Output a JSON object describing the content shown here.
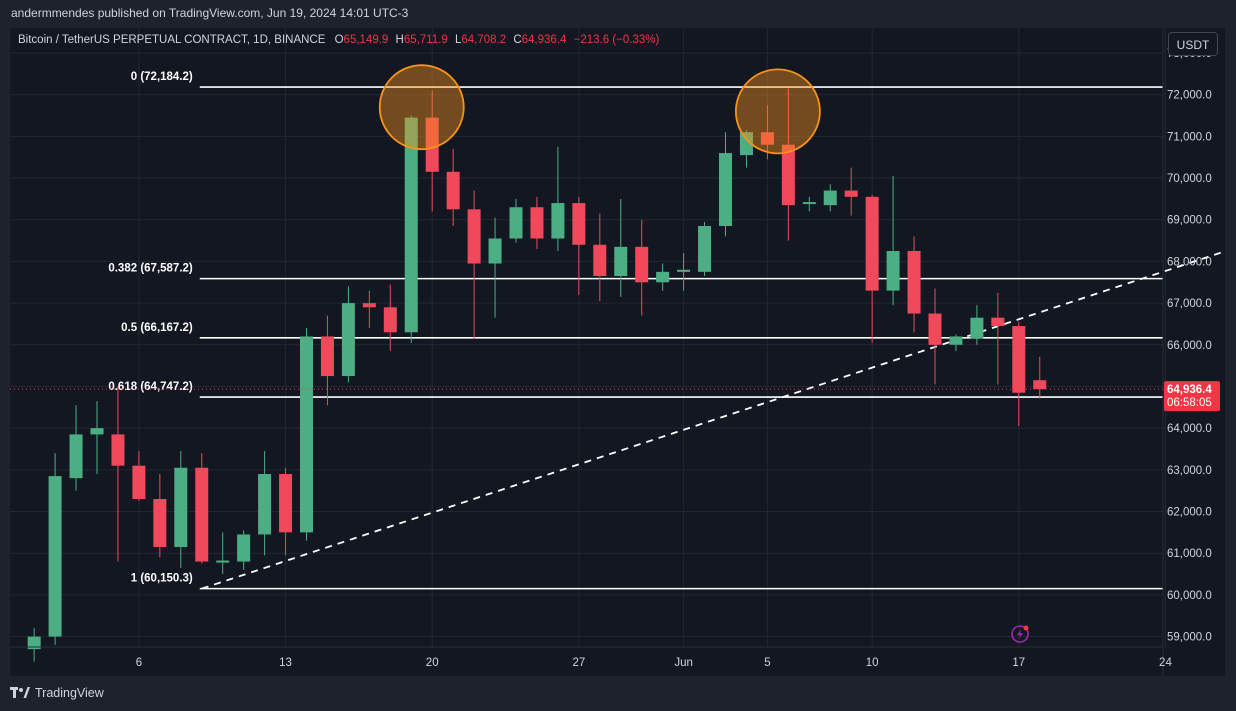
{
  "header": {
    "publisher": "andermmendes published on TradingView.com, Jun 19, 2024 14:01 UTC-3"
  },
  "legend": {
    "symbol": "Bitcoin / TetherUS PERPETUAL CONTRACT, 1D, BINANCE",
    "o_label": "O",
    "o": "65,149.9",
    "h_label": "H",
    "h": "65,711.9",
    "l_label": "L",
    "l": "64,708.2",
    "c_label": "C",
    "c": "64,936.4",
    "change": "−213.6 (−0.33%)"
  },
  "currency": "USDT",
  "brand": "TradingView",
  "colors": {
    "up": "#4caf84",
    "down": "#f0495b",
    "grid": "#232733",
    "fib": "#ffffff",
    "circle": "#f7931a",
    "price_badge": "#f23645"
  },
  "chart_data": {
    "type": "candlestick",
    "x_ticks": [
      {
        "label": "6",
        "day": 6
      },
      {
        "label": "13",
        "day": 13
      },
      {
        "label": "20",
        "day": 20
      },
      {
        "label": "27",
        "day": 27
      },
      {
        "label": "Jun",
        "day": 32
      },
      {
        "label": "5",
        "day": 36
      },
      {
        "label": "10",
        "day": 41
      },
      {
        "label": "17",
        "day": 48
      },
      {
        "label": "24",
        "day": 55
      }
    ],
    "y_ticks": [
      "73,000.0",
      "72,000.0",
      "71,000.0",
      "70,000.0",
      "69,000.0",
      "68,000.0",
      "67,000.0",
      "66,000.0",
      "65,000.0",
      "64,000.0",
      "63,000.0",
      "62,000.0",
      "61,000.0",
      "60,000.0",
      "59,000.0"
    ],
    "ylim": [
      58750,
      73600
    ],
    "candles": [
      {
        "day": 1,
        "o": 58700,
        "h": 59200,
        "l": 58400,
        "c": 59000
      },
      {
        "day": 2,
        "o": 59000,
        "h": 63400,
        "l": 58800,
        "c": 62850
      },
      {
        "day": 3,
        "o": 62800,
        "h": 64550,
        "l": 62500,
        "c": 63850
      },
      {
        "day": 4,
        "o": 63850,
        "h": 64650,
        "l": 62900,
        "c": 64000
      },
      {
        "day": 5,
        "o": 63850,
        "h": 65000,
        "l": 60800,
        "c": 63100
      },
      {
        "day": 6,
        "o": 63100,
        "h": 63450,
        "l": 62250,
        "c": 62300
      },
      {
        "day": 7,
        "o": 62300,
        "h": 62900,
        "l": 60900,
        "c": 61150
      },
      {
        "day": 8,
        "o": 61150,
        "h": 63450,
        "l": 60650,
        "c": 63050
      },
      {
        "day": 9,
        "o": 63050,
        "h": 63400,
        "l": 60750,
        "c": 60800
      },
      {
        "day": 10,
        "o": 60800,
        "h": 61500,
        "l": 60500,
        "c": 60800
      },
      {
        "day": 11,
        "o": 60800,
        "h": 61550,
        "l": 60600,
        "c": 61450
      },
      {
        "day": 12,
        "o": 61450,
        "h": 63450,
        "l": 60950,
        "c": 62900
      },
      {
        "day": 13,
        "o": 62900,
        "h": 63050,
        "l": 60950,
        "c": 61500
      },
      {
        "day": 14,
        "o": 61500,
        "h": 66400,
        "l": 61300,
        "c": 66200
      },
      {
        "day": 15,
        "o": 66200,
        "h": 66700,
        "l": 64550,
        "c": 65250
      },
      {
        "day": 16,
        "o": 65250,
        "h": 67400,
        "l": 65100,
        "c": 67000
      },
      {
        "day": 17,
        "o": 67000,
        "h": 67300,
        "l": 66400,
        "c": 66900
      },
      {
        "day": 18,
        "o": 66900,
        "h": 67450,
        "l": 65850,
        "c": 66300
      },
      {
        "day": 19,
        "o": 66300,
        "h": 71500,
        "l": 66050,
        "c": 71450
      },
      {
        "day": 20,
        "o": 71450,
        "h": 72100,
        "l": 69200,
        "c": 70150
      },
      {
        "day": 21,
        "o": 70150,
        "h": 70700,
        "l": 68850,
        "c": 69250
      },
      {
        "day": 22,
        "o": 69250,
        "h": 69700,
        "l": 66150,
        "c": 67950
      },
      {
        "day": 23,
        "o": 67950,
        "h": 69050,
        "l": 66650,
        "c": 68550
      },
      {
        "day": 24,
        "o": 68550,
        "h": 69500,
        "l": 68450,
        "c": 69300
      },
      {
        "day": 25,
        "o": 69300,
        "h": 69550,
        "l": 68300,
        "c": 68550
      },
      {
        "day": 26,
        "o": 68550,
        "h": 70750,
        "l": 68250,
        "c": 69400
      },
      {
        "day": 27,
        "o": 69400,
        "h": 69550,
        "l": 67200,
        "c": 68400
      },
      {
        "day": 28,
        "o": 68400,
        "h": 69150,
        "l": 67050,
        "c": 67650
      },
      {
        "day": 29,
        "o": 67650,
        "h": 69500,
        "l": 67150,
        "c": 68350
      },
      {
        "day": 30,
        "o": 68350,
        "h": 69000,
        "l": 66700,
        "c": 67500
      },
      {
        "day": 31,
        "o": 67500,
        "h": 67950,
        "l": 67300,
        "c": 67750
      },
      {
        "day": 32,
        "o": 67750,
        "h": 68200,
        "l": 67300,
        "c": 67800
      },
      {
        "day": 33,
        "o": 67750,
        "h": 68950,
        "l": 67650,
        "c": 68850
      },
      {
        "day": 34,
        "o": 68850,
        "h": 71100,
        "l": 68600,
        "c": 70600
      },
      {
        "day": 35,
        "o": 70550,
        "h": 71150,
        "l": 70250,
        "c": 71100
      },
      {
        "day": 36,
        "o": 71100,
        "h": 71750,
        "l": 70450,
        "c": 70800
      },
      {
        "day": 37,
        "o": 70800,
        "h": 72150,
        "l": 68500,
        "c": 69350
      },
      {
        "day": 38,
        "o": 69400,
        "h": 69550,
        "l": 69200,
        "c": 69400
      },
      {
        "day": 39,
        "o": 69350,
        "h": 69850,
        "l": 69200,
        "c": 69700
      },
      {
        "day": 40,
        "o": 69700,
        "h": 70250,
        "l": 69100,
        "c": 69550
      },
      {
        "day": 41,
        "o": 69550,
        "h": 69600,
        "l": 66050,
        "c": 67300
      },
      {
        "day": 42,
        "o": 67300,
        "h": 70050,
        "l": 66950,
        "c": 68250
      },
      {
        "day": 43,
        "o": 68250,
        "h": 68600,
        "l": 66300,
        "c": 66750
      },
      {
        "day": 44,
        "o": 66750,
        "h": 67350,
        "l": 65050,
        "c": 66000
      },
      {
        "day": 45,
        "o": 66000,
        "h": 66250,
        "l": 65850,
        "c": 66200
      },
      {
        "day": 46,
        "o": 66150,
        "h": 66950,
        "l": 66000,
        "c": 66650
      },
      {
        "day": 47,
        "o": 66650,
        "h": 67250,
        "l": 65050,
        "c": 66450
      },
      {
        "day": 48,
        "o": 66450,
        "h": 66550,
        "l": 64050,
        "c": 64850
      },
      {
        "day": 49,
        "o": 65149.9,
        "h": 65711.9,
        "l": 64708.2,
        "c": 64936.4
      }
    ],
    "fib_levels": [
      {
        "label": "0 (72,184.2)",
        "value": 72184.2
      },
      {
        "label": "0.382 (67,587.2)",
        "value": 67587.2
      },
      {
        "label": "0.5 (66,167.2)",
        "value": 66167.2
      },
      {
        "label": "0.618 (64,747.2)",
        "value": 64747.2
      },
      {
        "label": "1 (60,150.3)",
        "value": 60150.3
      }
    ],
    "trendline": {
      "from": {
        "day": 9,
        "value": 60150
      },
      "to": {
        "day": 60,
        "value": 68600
      }
    },
    "highlight_circles": [
      {
        "day": 19.5,
        "value": 71700
      },
      {
        "day": 36.5,
        "value": 71600
      }
    ],
    "last_price": {
      "value": 64936.4,
      "label": "64,936.4",
      "countdown": "06:58:05"
    },
    "grid": true
  }
}
